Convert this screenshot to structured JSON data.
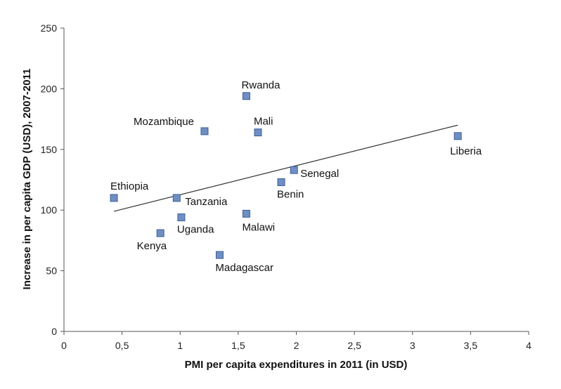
{
  "chart_data": {
    "type": "scatter",
    "xlabel": "PMI per capita expenditures in 2011 (in USD)",
    "ylabel": "Increase in per capita GDP (USD), 2007-2011",
    "xlim": [
      0,
      4
    ],
    "ylim": [
      0,
      250
    ],
    "x_ticks": [
      0,
      0.5,
      1,
      1.5,
      2,
      2.5,
      3,
      3.5,
      4
    ],
    "x_tick_labels": [
      "0",
      "0,5",
      "1",
      "1,5",
      "2",
      "2,5",
      "3",
      "3,5",
      "4"
    ],
    "y_ticks": [
      0,
      50,
      100,
      150,
      200,
      250
    ],
    "y_tick_labels": [
      "0",
      "50",
      "100",
      "150",
      "200",
      "250"
    ],
    "grid": false,
    "marker_color": "#6f8fc4",
    "points": [
      {
        "label": "Ethiopia",
        "x": 0.43,
        "y": 110
      },
      {
        "label": "Kenya",
        "x": 0.83,
        "y": 81
      },
      {
        "label": "Tanzania",
        "x": 0.97,
        "y": 110
      },
      {
        "label": "Uganda",
        "x": 1.01,
        "y": 94
      },
      {
        "label": "Mozambique",
        "x": 1.21,
        "y": 165
      },
      {
        "label": "Madagascar",
        "x": 1.34,
        "y": 63
      },
      {
        "label": "Rwanda",
        "x": 1.57,
        "y": 194
      },
      {
        "label": "Malawi",
        "x": 1.57,
        "y": 97
      },
      {
        "label": "Mali",
        "x": 1.67,
        "y": 164
      },
      {
        "label": "Benin",
        "x": 1.87,
        "y": 123
      },
      {
        "label": "Senegal",
        "x": 1.98,
        "y": 133
      },
      {
        "label": "Liberia",
        "x": 3.39,
        "y": 161
      }
    ],
    "trendline": {
      "x": [
        0.43,
        3.39
      ],
      "y": [
        99,
        170
      ]
    }
  }
}
